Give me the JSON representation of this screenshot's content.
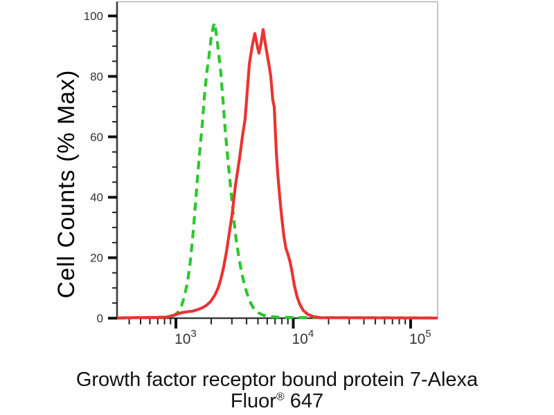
{
  "figure": {
    "background": "#ffffff"
  },
  "caption": {
    "line1": "Growth factor receptor bound protein 7-Alexa",
    "line2_pre": "Fluor",
    "line2_sup": "®",
    "line2_post": " 647"
  },
  "chart_data": {
    "type": "line",
    "subtype": "flow-cytometry-histogram-overlay",
    "title": "",
    "ylabel": "Cell Counts (% Max)",
    "xlabel": "Growth factor receptor bound protein 7-Alexa Fluor® 647",
    "x_scale": "log10",
    "xlim": [
      315,
      170000
    ],
    "ylim": [
      0,
      104.7
    ],
    "grid": false,
    "legend": "none",
    "axis_color": "#3a3a3a",
    "frame_color": "#b4b4b4",
    "tick_color": "#111111",
    "tick_label_color": "#333333",
    "y_major_ticks": [
      0,
      20,
      40,
      60,
      80,
      100
    ],
    "y_minor_step": 5,
    "x_major_ticks": [
      {
        "value": 1000,
        "base": "10",
        "exp": "3"
      },
      {
        "value": 10000,
        "base": "10",
        "exp": "4"
      },
      {
        "value": 100000,
        "base": "10",
        "exp": "5"
      }
    ],
    "x_minor_multipliers": [
      2,
      3,
      4,
      5,
      6,
      7,
      8,
      9
    ],
    "series": [
      {
        "name": "green-dashed-control",
        "color": "#2cc62c",
        "line_style": "dashed",
        "points": [
          [
            315,
            0
          ],
          [
            897,
            0.4
          ],
          [
            973,
            1
          ],
          [
            1042,
            2
          ],
          [
            1115,
            4
          ],
          [
            1177,
            7
          ],
          [
            1243,
            11
          ],
          [
            1312,
            17
          ],
          [
            1386,
            26
          ],
          [
            1463,
            37
          ],
          [
            1524,
            46
          ],
          [
            1587,
            54
          ],
          [
            1676,
            64
          ],
          [
            1746,
            73
          ],
          [
            1843,
            82
          ],
          [
            1920,
            87
          ],
          [
            2000,
            93
          ],
          [
            2083,
            96.5
          ],
          [
            2140,
            97.7
          ],
          [
            2229,
            93
          ],
          [
            2321,
            87
          ],
          [
            2418,
            81
          ],
          [
            2519,
            72
          ],
          [
            2624,
            63
          ],
          [
            2733,
            55
          ],
          [
            2847,
            48
          ],
          [
            2965,
            41
          ],
          [
            3088,
            34
          ],
          [
            3261,
            26
          ],
          [
            3443,
            20
          ],
          [
            3635,
            15
          ],
          [
            3838,
            11
          ],
          [
            4053,
            8
          ],
          [
            4337,
            5
          ],
          [
            4642,
            3
          ],
          [
            5037,
            1.8
          ],
          [
            5539,
            1
          ],
          [
            6346,
            0.5
          ],
          [
            7780,
            0.3
          ],
          [
            10900,
            0.2
          ],
          [
            170000,
            0.1
          ]
        ]
      },
      {
        "name": "red-solid-grb7-alexa-647",
        "color": "#ec3232",
        "line_style": "solid",
        "points": [
          [
            315,
            0.1
          ],
          [
            827,
            0.3
          ],
          [
            922,
            0.8
          ],
          [
            1000,
            1.2
          ],
          [
            1115,
            1.8
          ],
          [
            1243,
            2.1
          ],
          [
            1386,
            2.3
          ],
          [
            1524,
            2.8
          ],
          [
            1676,
            3.4
          ],
          [
            1818,
            4.2
          ],
          [
            1972,
            5.5
          ],
          [
            2140,
            7.5
          ],
          [
            2290,
            10
          ],
          [
            2418,
            13
          ],
          [
            2554,
            17
          ],
          [
            2696,
            22
          ],
          [
            2847,
            28
          ],
          [
            3006,
            34
          ],
          [
            3217,
            44
          ],
          [
            3491,
            53
          ],
          [
            3685,
            60
          ],
          [
            3890,
            66
          ],
          [
            4053,
            75
          ],
          [
            4221,
            84
          ],
          [
            4337,
            87
          ],
          [
            4518,
            91
          ],
          [
            4706,
            94.2
          ],
          [
            4970,
            89.5
          ],
          [
            5105,
            87.7
          ],
          [
            5318,
            91
          ],
          [
            5539,
            95.5
          ],
          [
            5770,
            91
          ],
          [
            6010,
            87
          ],
          [
            6261,
            83
          ],
          [
            6433,
            80
          ],
          [
            6699,
            72
          ],
          [
            6883,
            70
          ],
          [
            7169,
            55
          ],
          [
            7366,
            48
          ],
          [
            7673,
            40
          ],
          [
            7992,
            33
          ],
          [
            8324,
            27
          ],
          [
            8670,
            23
          ],
          [
            9031,
            21
          ],
          [
            9405,
            18.5
          ],
          [
            9800,
            15
          ],
          [
            10200,
            11
          ],
          [
            10800,
            7
          ],
          [
            11400,
            4.5
          ],
          [
            12200,
            2.5
          ],
          [
            13400,
            1.2
          ],
          [
            14900,
            0.5
          ],
          [
            17100,
            0.15
          ],
          [
            170000,
            0.05
          ]
        ]
      }
    ]
  }
}
